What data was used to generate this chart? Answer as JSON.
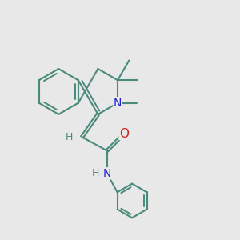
{
  "bg_color": "#e8e8e8",
  "bond_color": "#4a8a7a",
  "n_color": "#2020cc",
  "o_color": "#cc2020",
  "h_color": "#4a8a7a",
  "lw": 1.5,
  "font_size": 10,
  "xlim": [
    0,
    10
  ],
  "ylim": [
    -0.5,
    10
  ]
}
